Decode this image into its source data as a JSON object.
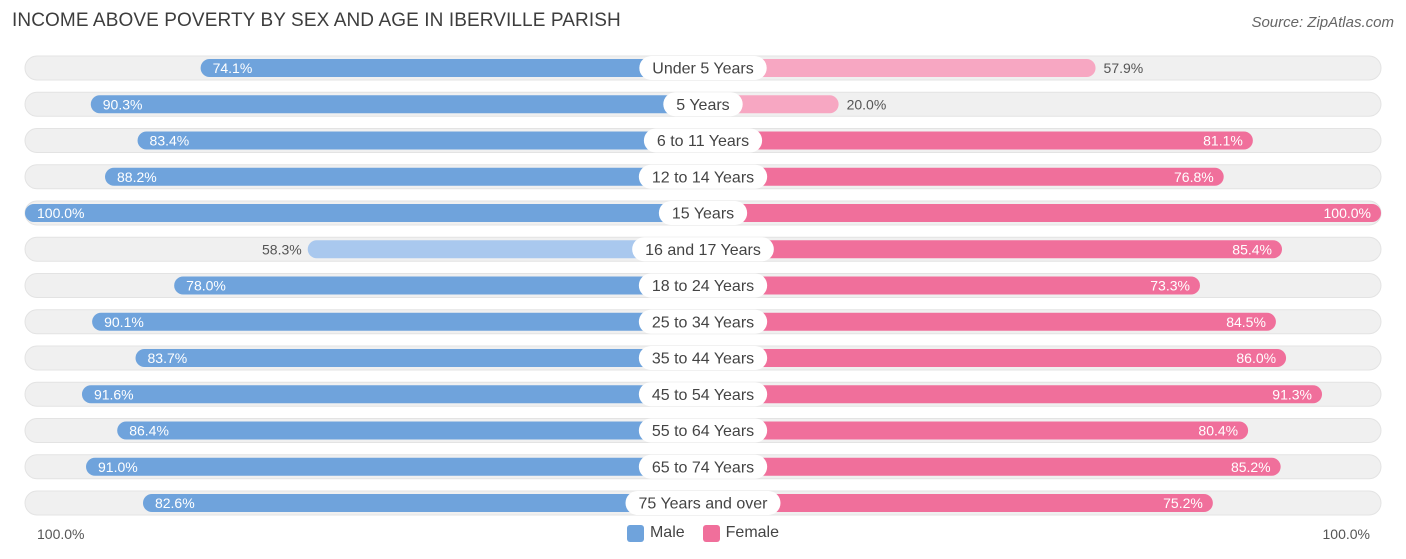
{
  "title": "INCOME ABOVE POVERTY BY SEX AND AGE IN IBERVILLE PARISH",
  "source": "Source: ZipAtlas.com",
  "axis": {
    "left_label": "100.0%",
    "right_label": "100.0%"
  },
  "legend": {
    "male_label": "Male",
    "female_label": "Female"
  },
  "colors": {
    "male_strong": "#6fa3dc",
    "male_light": "#a9c8ee",
    "female_strong": "#f06f9b",
    "female_light": "#f7a7c2",
    "track": "#f0f0f0"
  },
  "chart_data": {
    "type": "bar",
    "orientation": "horizontal-diverging",
    "categories": [
      "Under 5 Years",
      "5 Years",
      "6 to 11 Years",
      "12 to 14 Years",
      "15 Years",
      "16 and 17 Years",
      "18 to 24 Years",
      "25 to 34 Years",
      "35 to 44 Years",
      "45 to 54 Years",
      "55 to 64 Years",
      "65 to 74 Years",
      "75 Years and over"
    ],
    "series": [
      {
        "name": "Male",
        "values": [
          74.1,
          90.3,
          83.4,
          88.2,
          100.0,
          58.3,
          78.0,
          90.1,
          83.7,
          91.6,
          86.4,
          91.0,
          82.6
        ],
        "labels": [
          "74.1%",
          "90.3%",
          "83.4%",
          "88.2%",
          "100.0%",
          "58.3%",
          "78.0%",
          "90.1%",
          "83.7%",
          "91.6%",
          "86.4%",
          "91.0%",
          "82.6%"
        ]
      },
      {
        "name": "Female",
        "values": [
          57.9,
          20.0,
          81.1,
          76.8,
          100.0,
          85.4,
          73.3,
          84.5,
          86.0,
          91.3,
          80.4,
          85.2,
          75.2
        ],
        "labels": [
          "57.9%",
          "20.0%",
          "81.1%",
          "76.8%",
          "100.0%",
          "85.4%",
          "73.3%",
          "84.5%",
          "86.0%",
          "91.3%",
          "80.4%",
          "85.2%",
          "75.2%"
        ]
      }
    ],
    "xlim": [
      0,
      100
    ],
    "legend_position": "bottom-center",
    "grid": false
  }
}
